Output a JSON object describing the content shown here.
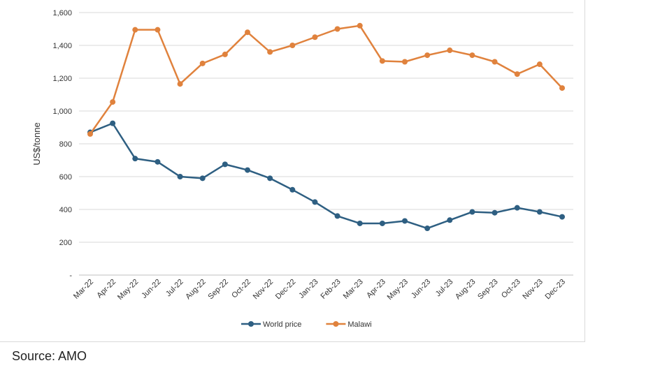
{
  "source": "Source: AMO",
  "chart_data": {
    "type": "line",
    "title": "",
    "xlabel": "",
    "ylabel": "US$/tonne",
    "ylim": [
      0,
      1600
    ],
    "yticks": [
      0,
      200,
      400,
      600,
      800,
      1000,
      1200,
      1400,
      1600
    ],
    "ytick_labels": [
      "-",
      "200",
      "400",
      "600",
      "800",
      "1,000",
      "1,200",
      "1,400",
      "1,600"
    ],
    "grid": true,
    "legend_position": "bottom",
    "categories": [
      "Mar-22",
      "Apr-22",
      "May-22",
      "Jun-22",
      "Jul-22",
      "Aug-22",
      "Sep-22",
      "Oct-22",
      "Nov-22",
      "Dec-22",
      "Jan-23",
      "Feb-23",
      "Mar-23",
      "Apr-23",
      "May-23",
      "Jun-23",
      "Jul-23",
      "Aug-23",
      "Sep-23",
      "Oct-23",
      "Nov-23",
      "Dec-23"
    ],
    "series": [
      {
        "name": "World price",
        "color": "#2e5f82",
        "values": [
          870,
          925,
          710,
          690,
          600,
          590,
          675,
          640,
          590,
          520,
          445,
          360,
          315,
          315,
          330,
          285,
          335,
          385,
          380,
          410,
          385,
          355
        ]
      },
      {
        "name": "Malawi",
        "color": "#e0823d",
        "values": [
          860,
          1055,
          1495,
          1495,
          1165,
          1290,
          1345,
          1480,
          1360,
          1400,
          1450,
          1500,
          1520,
          1305,
          1300,
          1340,
          1370,
          1340,
          1300,
          1225,
          1285,
          1140
        ]
      }
    ]
  }
}
